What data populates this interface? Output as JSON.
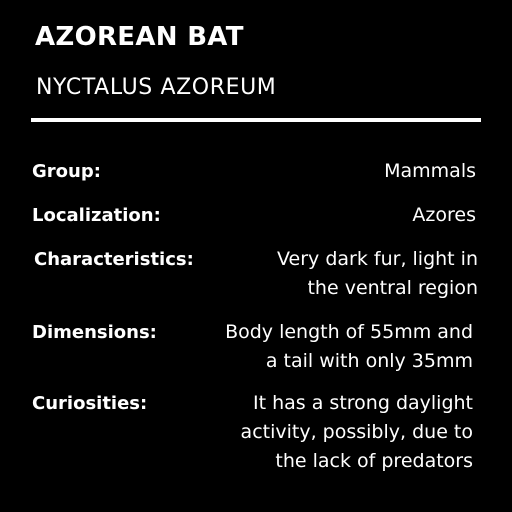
{
  "header": {
    "title": "AZOREAN BAT",
    "subtitle": "NYCTALUS AZOREUM"
  },
  "facts": {
    "group": {
      "label": "Group:",
      "value": "Mammals"
    },
    "localization": {
      "label": "Localization:",
      "value": "Azores"
    },
    "characteristics": {
      "label": "Characteristics:",
      "value": "Very dark fur, light in\nthe ventral region"
    },
    "dimensions": {
      "label": "Dimensions:",
      "value": "Body length of 55mm and\na tail with only 35mm"
    },
    "curiosities": {
      "label": "Curiosities:",
      "value": "It has a strong daylight\nactivity, possibly, due to\nthe lack of predators"
    }
  },
  "colors": {
    "background": "#000000",
    "text": "#ffffff"
  }
}
